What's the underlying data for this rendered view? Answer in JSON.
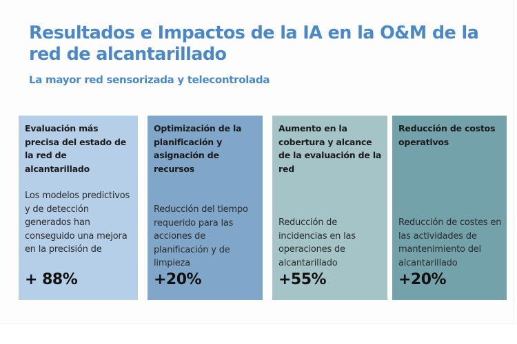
{
  "header": {
    "title": "Resultados e Impactos de la IA en la O&M de la red de alcantarillado",
    "subtitle": "La mayor red sensorizada y telecontrolada"
  },
  "colors": {
    "title": "#4a88c8",
    "card_1": "#b5cfe8",
    "card_2": "#80a6c9",
    "card_3": "#a4c4c8",
    "card_4": "#74a2ab"
  },
  "cards": [
    {
      "heading": "Evaluación más precisa del estado de la red de alcantarillado",
      "description": "Los modelos predictivos y de detección generados han conseguido una mejora en la precisión de",
      "value": "+ 88%"
    },
    {
      "heading": "Optimización de la planificación y asignación de recursos",
      "description": "Reducción del tiempo requerido para las acciones de planificación y de limpieza",
      "value": "+20%"
    },
    {
      "heading": "Aumento en la cobertura y alcance de la evaluación de la red",
      "description": "Reducción de incidencias en las operaciones de alcantarillado",
      "value": "+55%"
    },
    {
      "heading": "Reducción de costos operativos",
      "description": "Reducción de costes en las actividades de mantenimiento del alcantarillado",
      "value": "+20%"
    }
  ]
}
